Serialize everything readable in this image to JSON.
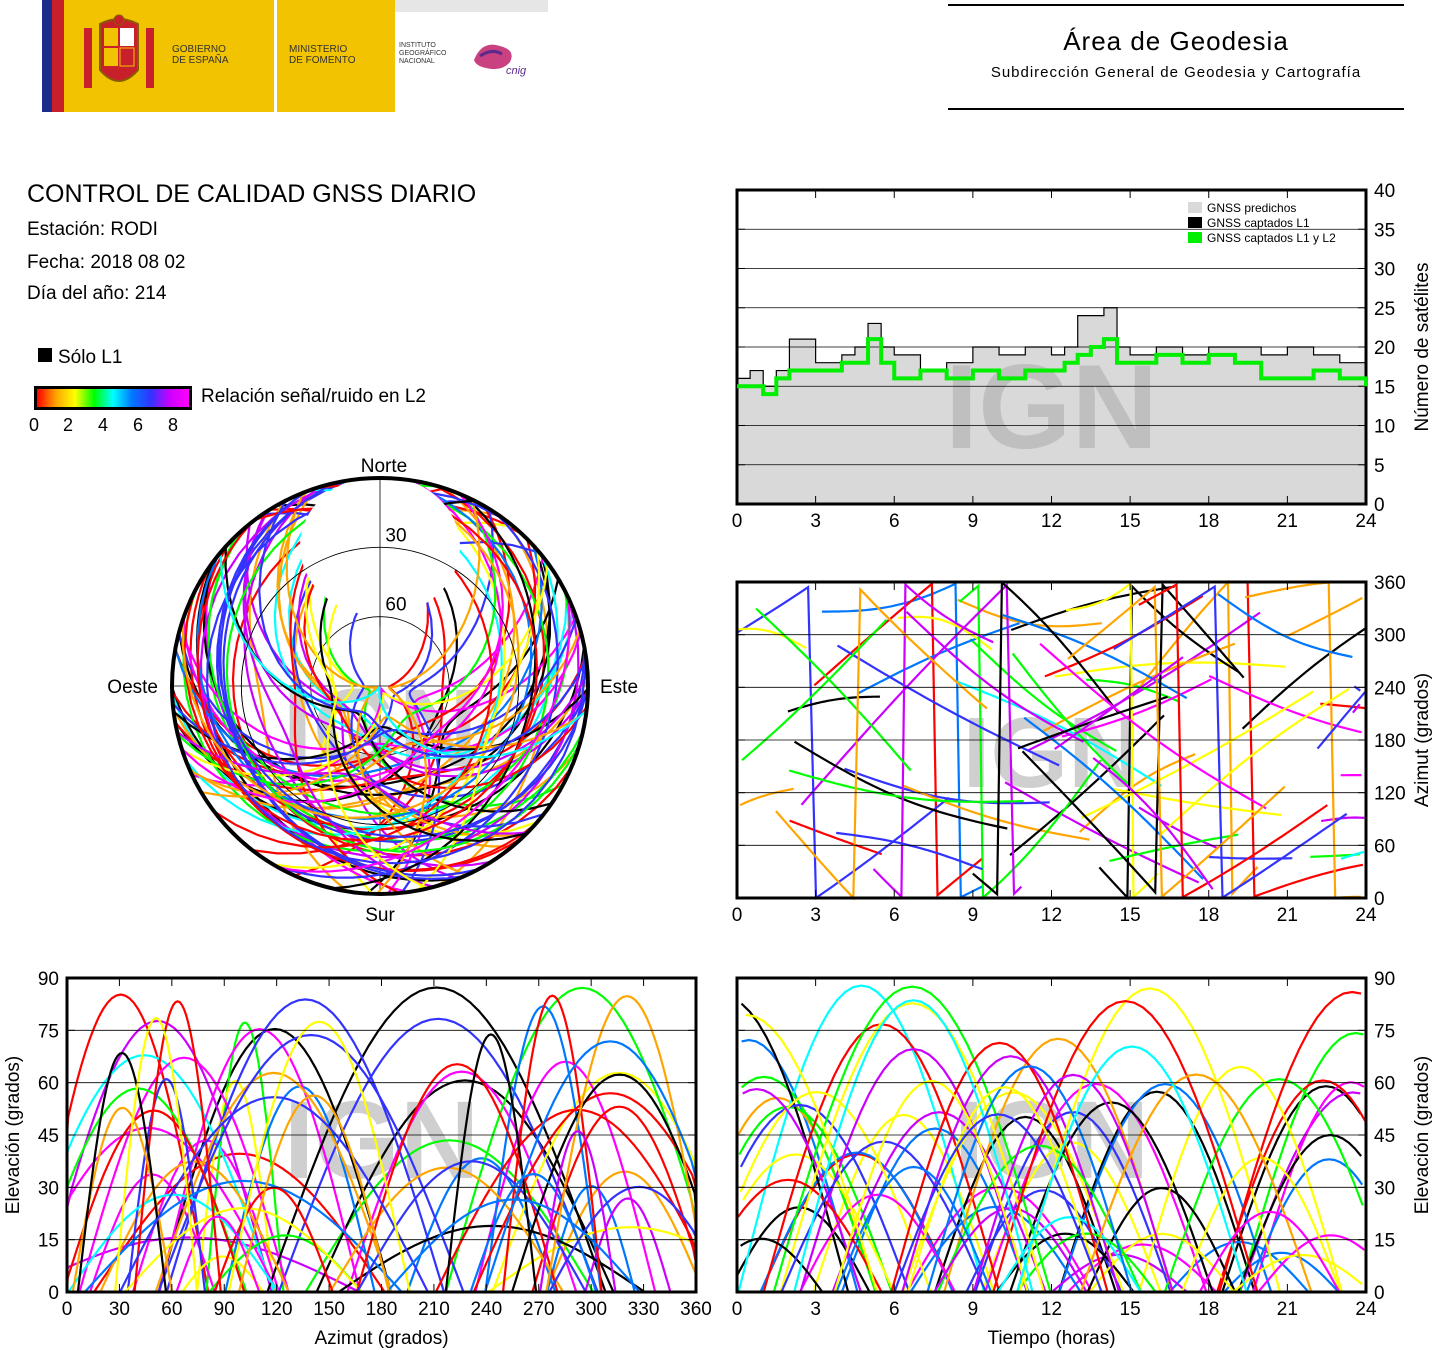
{
  "header": {
    "logo_gobierno": "GOBIERNO\nDE ESPAÑA",
    "logo_ministerio": "MINISTERIO\nDE FOMENTO",
    "logo_instituto": "INSTITUTO\nGEOGRÁFICO\nNACIONAL",
    "logo_cnig": "cnig",
    "area_title": "Área de Geodesia",
    "area_subtitle": "Subdirección General de Geodesia y Cartografía"
  },
  "info": {
    "title": "CONTROL DE CALIDAD GNSS DIARIO",
    "station": "Estación: RODI",
    "date": "Fecha: 2018 08 02",
    "doy": "Día del año: 214"
  },
  "legend": {
    "l1_only": "Sólo L1",
    "snr_label": "Relación señal/ruido en L2",
    "snr_ticks": [
      "0",
      "2",
      "4",
      "6",
      "8"
    ]
  },
  "watermark": "IGN",
  "colors": {
    "predicted": "#d9d9d9",
    "l1": "#000000",
    "l1l2": "#00ee00",
    "snr_scale": [
      "#ff0000",
      "#ffa500",
      "#ffff00",
      "#00ff00",
      "#00ffff",
      "#0077ff",
      "#3333ff",
      "#cc00ff",
      "#ff00ff"
    ]
  },
  "chart_data": [
    {
      "type": "polar",
      "id": "skyplot",
      "directions": {
        "north": "Norte",
        "south": "Sur",
        "west": "Oeste",
        "east": "Este"
      },
      "ring_labels": [
        "30",
        "60"
      ],
      "elevation_rings": [
        30,
        60
      ],
      "obstruction": "no tracks in northern sector above ~25° elevation"
    },
    {
      "type": "area",
      "id": "satellite-count",
      "x_ticks": [
        "0",
        "3",
        "6",
        "9",
        "12",
        "15",
        "18",
        "21",
        "24"
      ],
      "y_ticks": [
        "0",
        "5",
        "10",
        "15",
        "20",
        "25",
        "30",
        "35",
        "40"
      ],
      "xlim": [
        0,
        24
      ],
      "ylim": [
        0,
        40
      ],
      "ylabel": "Número de satélites",
      "legend": [
        "GNSS predichos",
        "GNSS captados L1",
        "GNSS captados L1 y L2"
      ],
      "series": [
        {
          "name": "GNSS predichos",
          "x": [
            0,
            0.5,
            1,
            1.5,
            2,
            3,
            4,
            4.5,
            5,
            5.5,
            6,
            7,
            8,
            9,
            10,
            11,
            12,
            12.5,
            13,
            13.5,
            14,
            14.5,
            15,
            16,
            17,
            18,
            19,
            20,
            21,
            22,
            23,
            24
          ],
          "values": [
            16,
            17,
            15,
            17,
            21,
            18,
            19,
            20,
            23,
            20,
            19,
            17,
            18,
            20,
            19,
            20,
            19,
            20,
            24,
            24,
            25,
            20,
            19,
            20,
            19,
            20,
            20,
            19,
            20,
            19,
            18,
            17
          ]
        },
        {
          "name": "GNSS captados L1",
          "x": [
            0,
            0.5,
            1,
            1.5,
            2,
            3,
            4,
            4.5,
            5,
            5.5,
            6,
            7,
            8,
            9,
            10,
            11,
            12,
            12.5,
            13,
            13.5,
            14,
            14.5,
            15,
            16,
            17,
            18,
            19,
            20,
            21,
            22,
            23,
            24
          ],
          "values": [
            16,
            17,
            15,
            17,
            21,
            18,
            19,
            20,
            23,
            20,
            19,
            17,
            18,
            20,
            19,
            20,
            19,
            20,
            24,
            24,
            25,
            20,
            19,
            20,
            19,
            20,
            20,
            19,
            20,
            19,
            18,
            17
          ]
        },
        {
          "name": "GNSS captados L1 y L2",
          "x": [
            0,
            0.5,
            1,
            1.5,
            2,
            3,
            4,
            4.5,
            5,
            5.5,
            6,
            7,
            8,
            9,
            10,
            11,
            12,
            12.5,
            13,
            13.5,
            14,
            14.5,
            15,
            16,
            17,
            18,
            19,
            20,
            21,
            22,
            23,
            24
          ],
          "values": [
            15,
            15,
            14,
            16,
            17,
            17,
            18,
            18,
            21,
            18,
            16,
            17,
            16,
            17,
            16,
            17,
            17,
            18,
            19,
            20,
            21,
            18,
            18,
            19,
            18,
            19,
            18,
            16,
            16,
            17,
            16,
            15
          ]
        }
      ]
    },
    {
      "type": "scatter",
      "id": "azimuth-time",
      "x_ticks": [
        "0",
        "3",
        "6",
        "9",
        "12",
        "15",
        "18",
        "21",
        "24"
      ],
      "y_ticks": [
        "0",
        "60",
        "120",
        "180",
        "240",
        "300",
        "360"
      ],
      "xlim": [
        0,
        24
      ],
      "ylim": [
        0,
        360
      ],
      "ylabel": "Azimut (grados)"
    },
    {
      "type": "scatter",
      "id": "elevation-azimuth",
      "x_ticks": [
        "0",
        "30",
        "60",
        "90",
        "120",
        "150",
        "180",
        "210",
        "240",
        "270",
        "300",
        "330",
        "360"
      ],
      "y_ticks": [
        "0",
        "15",
        "30",
        "45",
        "60",
        "75",
        "90"
      ],
      "xlim": [
        0,
        360
      ],
      "ylim": [
        0,
        90
      ],
      "xlabel": "Azimut (grados)",
      "ylabel": "Elevación (grados)"
    },
    {
      "type": "scatter",
      "id": "elevation-time",
      "x_ticks": [
        "0",
        "3",
        "6",
        "9",
        "12",
        "15",
        "18",
        "21",
        "24"
      ],
      "y_ticks": [
        "0",
        "15",
        "30",
        "45",
        "60",
        "75",
        "90"
      ],
      "xlim": [
        0,
        24
      ],
      "ylim": [
        0,
        90
      ],
      "xlabel": "Tiempo (horas)",
      "ylabel": "Elevación (grados)"
    }
  ]
}
